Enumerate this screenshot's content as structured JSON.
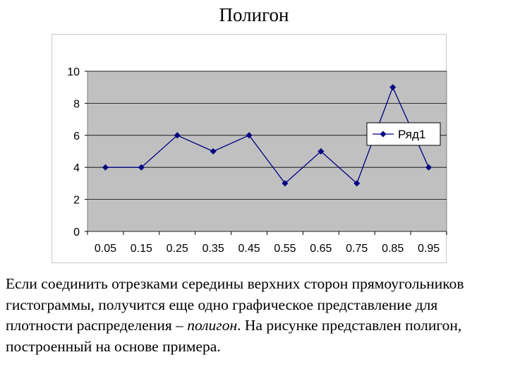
{
  "slide": {
    "title": "Полигон",
    "text_part1": "Если соединить отрезками середины верхних сторон прямоугольников гистограммы, получится еще одно графическое представление для плотности распределения – ",
    "text_emphasis": "полигон",
    "text_part2": ". На рисунке представлен полигон, построенный на основе примера."
  },
  "chart_data": {
    "type": "line",
    "x": [
      "0.05",
      "0.15",
      "0.25",
      "0.35",
      "0.45",
      "0.55",
      "0.65",
      "0.75",
      "0.85",
      "0.95"
    ],
    "series": [
      {
        "name": "Ряд1",
        "values": [
          4,
          4,
          6,
          5,
          6,
          3,
          5,
          3,
          9,
          4
        ],
        "color": "#000080",
        "marker": "diamond"
      }
    ],
    "ylim": [
      0,
      10
    ],
    "yticks": [
      "0",
      "2",
      "4",
      "6",
      "8",
      "10"
    ],
    "grid": "horizontal",
    "plot_background": "#c0c0c0",
    "legend": "right"
  }
}
